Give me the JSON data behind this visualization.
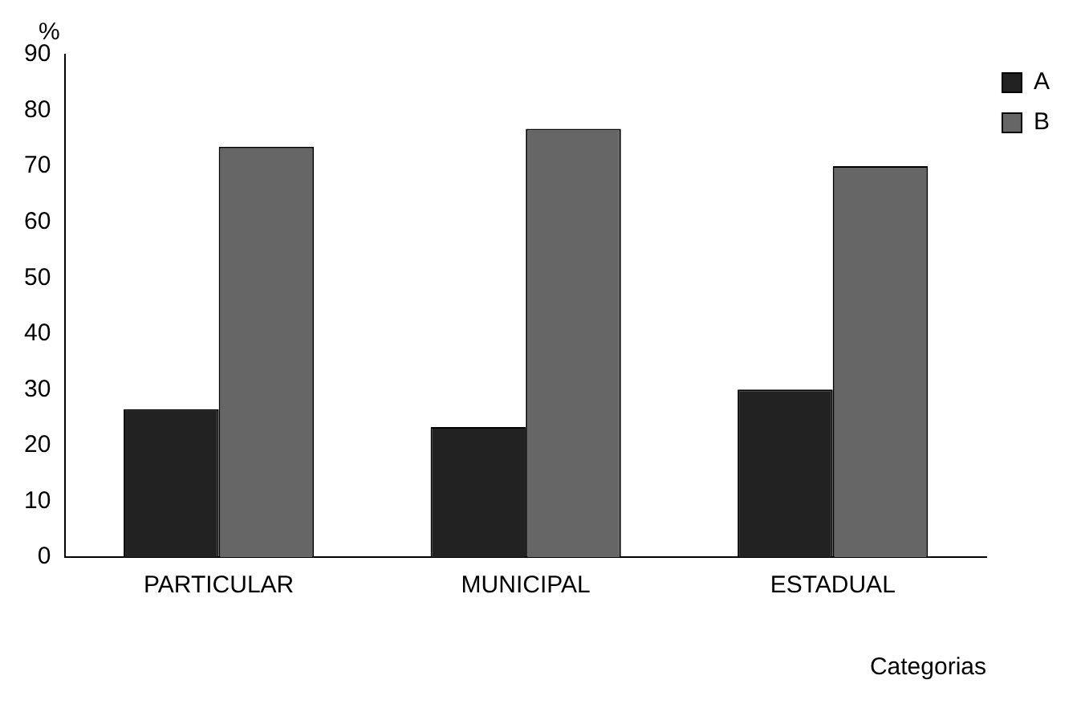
{
  "chart_data": {
    "type": "bar",
    "categories": [
      "PARTICULAR",
      "MUNICIPAL",
      "ESTADUAL"
    ],
    "series": [
      {
        "name": "A",
        "color": "#222222",
        "values": [
          26.5,
          23.3,
          30
        ]
      },
      {
        "name": "B",
        "color": "#666666",
        "values": [
          73.5,
          76.7,
          70
        ]
      }
    ],
    "xlabel": "Categorias",
    "ylabel": "%",
    "ylim": [
      0,
      90
    ],
    "yticks": [
      0,
      10,
      20,
      30,
      40,
      50,
      60,
      70,
      80,
      90
    ],
    "grid": false,
    "legend": "top right"
  }
}
